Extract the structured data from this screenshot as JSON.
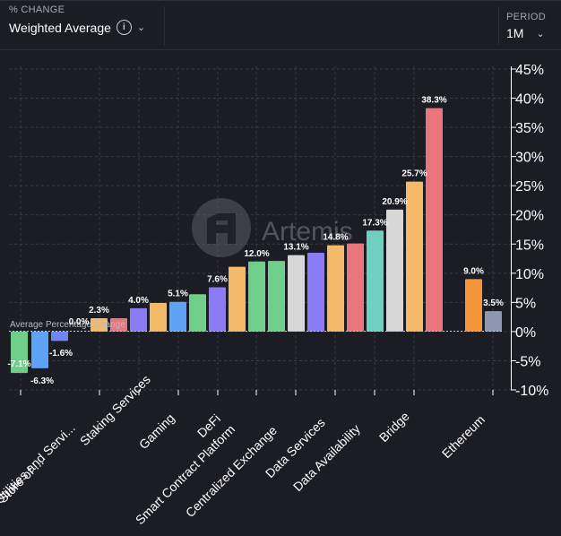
{
  "header": {
    "metric_label": "% CHANGE",
    "metric_value": "Weighted Average",
    "info_icon": "i",
    "period_label": "PERIOD",
    "period_value": "1M"
  },
  "watermark": "Artemis",
  "chart_data": {
    "type": "bar",
    "ylabel": "% change",
    "ylim": [
      -10,
      45
    ],
    "yticks": [
      "45%",
      "40%",
      "35%",
      "30%",
      "25%",
      "20%",
      "15%",
      "10%",
      "5%",
      "0%",
      "-5%",
      "-10%"
    ],
    "average_line_label": "Average Percentage Change",
    "bars": [
      {
        "group": 0,
        "value": -7.1,
        "label": "-7.1%",
        "color": "#6fcf8a"
      },
      {
        "group": 0,
        "value": -6.3,
        "label": "-6.3%",
        "color": "#5ea3f5"
      },
      {
        "group": 0,
        "value": -1.6,
        "label": "-1.6%",
        "color": "#6d86f0"
      },
      {
        "group": 1,
        "value": 2.3,
        "label": "2.3%",
        "color": "#f4ba6a"
      },
      {
        "group": 1,
        "value": 2.3,
        "label": "",
        "color": "#e8767c"
      },
      {
        "group": 2,
        "value": 4.0,
        "label": "4.0%",
        "color": "#8b7bf5"
      },
      {
        "group": 2,
        "value": 4.9,
        "label": "",
        "color": "#f4ba6a"
      },
      {
        "group": 3,
        "value": 5.1,
        "label": "5.1%",
        "color": "#5ea3f5"
      },
      {
        "group": 3,
        "value": 6.4,
        "label": "",
        "color": "#6fcf8a"
      },
      {
        "group": 4,
        "value": 7.6,
        "label": "7.6%",
        "color": "#8b7bf5"
      },
      {
        "group": 4,
        "value": 11.1,
        "label": "",
        "color": "#f4ba6a"
      },
      {
        "group": 5,
        "value": 12.0,
        "label": "12.0%",
        "color": "#6fcf8a"
      },
      {
        "group": 5,
        "value": 12.1,
        "label": "",
        "color": "#6fcf8a"
      },
      {
        "group": 6,
        "value": 13.1,
        "label": "13.1%",
        "color": "#d7d7d7"
      },
      {
        "group": 6,
        "value": 13.5,
        "label": "",
        "color": "#8b7bf5"
      },
      {
        "group": 7,
        "value": 14.8,
        "label": "14.8%",
        "color": "#f4ba6a"
      },
      {
        "group": 7,
        "value": 15.1,
        "label": "",
        "color": "#e8767c"
      },
      {
        "group": 8,
        "value": 17.3,
        "label": "17.3%",
        "color": "#6fd0c0"
      },
      {
        "group": 8,
        "value": 20.9,
        "label": "20.9%",
        "color": "#d7d7d7"
      },
      {
        "group": 9,
        "value": 25.7,
        "label": "25.7%",
        "color": "#f4ba6a"
      },
      {
        "group": 9,
        "value": 38.3,
        "label": "38.3%",
        "color": "#e8767c"
      },
      {
        "group": 10,
        "value": 9.0,
        "label": "9.0%",
        "color": "#f5953a"
      },
      {
        "group": 10,
        "value": 3.5,
        "label": "3.5%",
        "color": "#8f98b3"
      }
    ],
    "zero_label": "0.0%",
    "categories": [
      "Store of ...",
      "Utilities and Servi...",
      "Staking Services",
      "Gaming",
      "DeFi",
      "Smart Contract Platform",
      "Centralized Exchange",
      "Data Services",
      "Data Availability",
      "Bridge",
      "Ethereum"
    ]
  }
}
